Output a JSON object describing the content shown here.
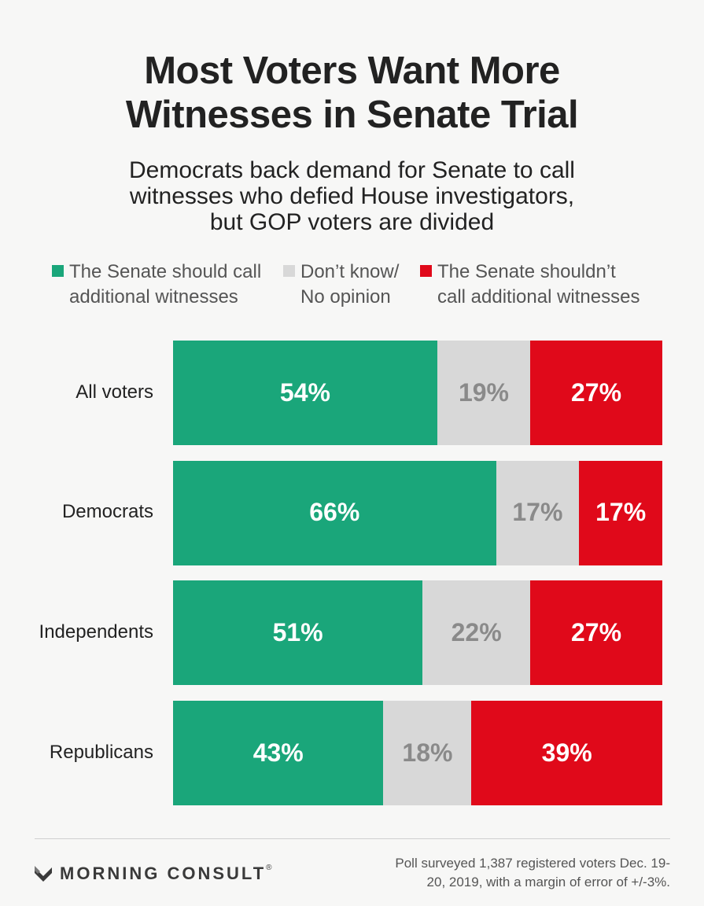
{
  "title_line1": "Most Voters Want More",
  "title_line2": "Witnesses in Senate Trial",
  "subtitle_line1": "Democrats back demand for Senate to call",
  "subtitle_line2": "witnesses who defied House investigators,",
  "subtitle_line3": "but GOP voters are divided",
  "legend": [
    {
      "line1": "The Senate should call",
      "line2": "additional witnesses",
      "color": "#1aa67a"
    },
    {
      "line1": "Don’t know/",
      "line2": "No opinion",
      "color": "#d8d8d8"
    },
    {
      "line1": "The Senate shouldn’t",
      "line2": "call additional witnesses",
      "color": "#e0091a"
    }
  ],
  "chart_data": {
    "type": "bar",
    "stacked": true,
    "orientation": "horizontal",
    "categories": [
      "All voters",
      "Democrats",
      "Independents",
      "Republicans"
    ],
    "series": [
      {
        "name": "The Senate should call additional witnesses",
        "values": [
          54,
          66,
          51,
          43
        ],
        "labels": [
          "54%",
          "66%",
          "51%",
          "43%"
        ],
        "color": "#1aa67a",
        "label_color": "#ffffff"
      },
      {
        "name": "Don’t know/ No opinion",
        "values": [
          19,
          17,
          22,
          18
        ],
        "labels": [
          "19%",
          "17%",
          "22%",
          "18%"
        ],
        "color": "#d8d8d8",
        "label_color": "#8a8a8a"
      },
      {
        "name": "The Senate shouldn’t call additional witnesses",
        "values": [
          27,
          17,
          27,
          39
        ],
        "labels": [
          "27%",
          "17%",
          "27%",
          "39%"
        ],
        "color": "#e0091a",
        "label_color": "#ffffff"
      }
    ],
    "xlim": [
      0,
      100
    ],
    "grid": false
  },
  "brand": "MORNING CONSULT",
  "brand_mark": "®",
  "footnote_line1": "Poll surveyed 1,387 registered voters Dec. 19-",
  "footnote_line2": "20, 2019, with a margin of error of +/-3%."
}
